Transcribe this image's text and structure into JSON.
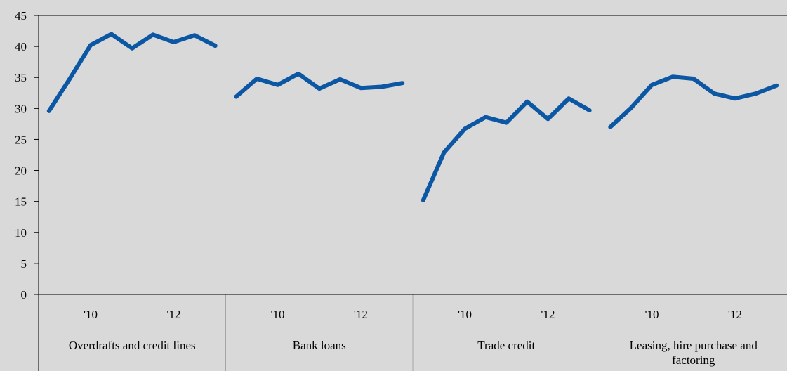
{
  "chart_data": {
    "type": "line",
    "title": "",
    "xlabel": "",
    "ylabel": "",
    "ylim": [
      0,
      45
    ],
    "yticks": [
      "0",
      "5",
      "10",
      "15",
      "20",
      "25",
      "30",
      "35",
      "40",
      "45"
    ],
    "grid": false,
    "legend": "none",
    "colors": {
      "line": "#0b57a4",
      "background": "#d9d9d9",
      "axis": "#000000",
      "separator": "#a6a6a6"
    },
    "panels": [
      {
        "name": "Overdrafts and credit lines",
        "tick_labels": [
          "'10",
          "'12"
        ],
        "values": [
          29.6,
          34.8,
          40.2,
          42.0,
          39.7,
          41.9,
          40.7,
          41.8,
          40.1
        ]
      },
      {
        "name": "Bank loans",
        "tick_labels": [
          "'10",
          "'12"
        ],
        "values": [
          31.9,
          34.8,
          33.8,
          35.6,
          33.2,
          34.7,
          33.3,
          33.5,
          34.1
        ]
      },
      {
        "name": "Trade credit",
        "tick_labels": [
          "'10",
          "'12"
        ],
        "values": [
          15.2,
          22.9,
          26.7,
          28.6,
          27.7,
          31.1,
          28.3,
          31.6,
          29.7
        ]
      },
      {
        "name": "Leasing, hire purchase and factoring",
        "tick_labels": [
          "'10",
          "'12"
        ],
        "values": [
          27.0,
          30.1,
          33.8,
          35.1,
          34.8,
          32.4,
          31.6,
          32.4,
          33.7
        ]
      }
    ]
  }
}
